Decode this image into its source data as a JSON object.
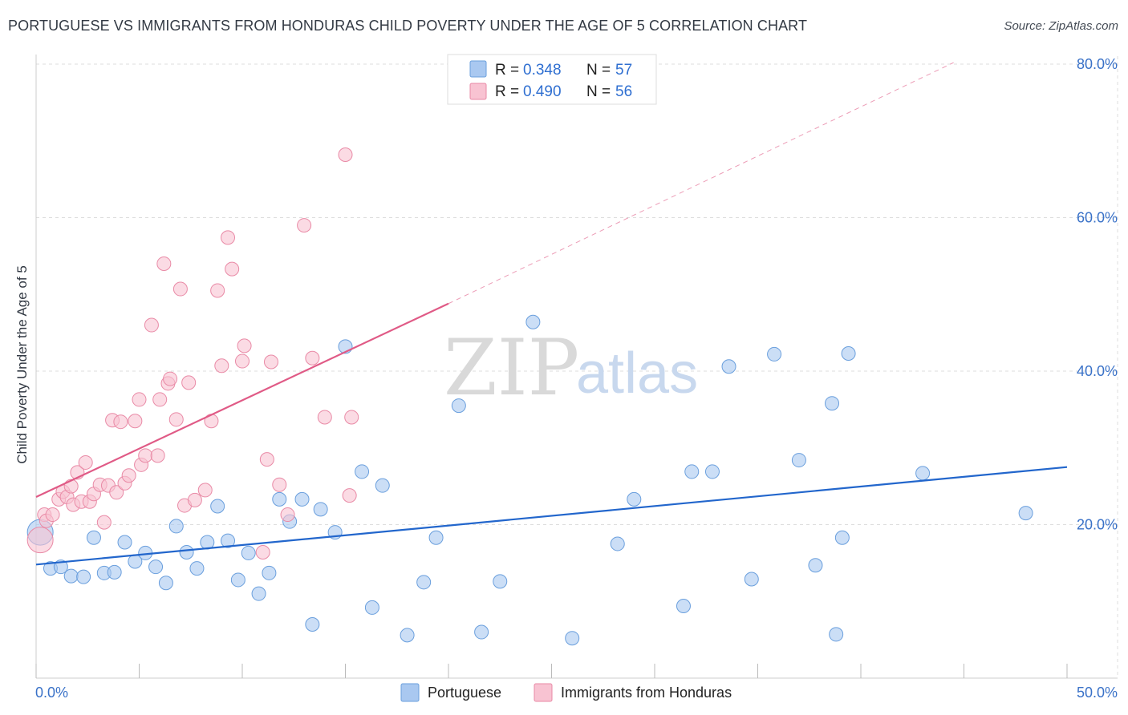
{
  "chart_data": {
    "type": "scatter",
    "title": "PORTUGUESE VS IMMIGRANTS FROM HONDURAS CHILD POVERTY UNDER THE AGE OF 5 CORRELATION CHART",
    "source": "Source: ZipAtlas.com",
    "ylabel": "Child Poverty Under the Age of 5",
    "xlabel": "",
    "xlim": [
      0,
      50
    ],
    "ylim": [
      0,
      80
    ],
    "x_tick_labels": [
      "0.0%",
      "50.0%"
    ],
    "y_ticks": [
      20,
      40,
      60,
      80
    ],
    "y_tick_labels": [
      "20.0%",
      "40.0%",
      "60.0%",
      "80.0%"
    ],
    "grid": true,
    "watermark": {
      "zip": "ZIP",
      "atlas": "atlas"
    },
    "colors": {
      "portuguese_fill": "#a9c8f0",
      "portuguese_stroke": "#6a9fdd",
      "portuguese_line": "#2266cc",
      "honduras_fill": "#f8c3d2",
      "honduras_stroke": "#e98aa6",
      "honduras_line": "#e05a86",
      "axis_label": "#3a72c8",
      "grid": "#dddddd"
    },
    "legend": {
      "r_label": "R =",
      "n_label": "N =",
      "entries": [
        {
          "name": "Portuguese",
          "r": "0.348",
          "n": "57"
        },
        {
          "name": "Immigrants from Honduras",
          "r": "0.490",
          "n": "56"
        }
      ]
    },
    "series": [
      {
        "name": "Portuguese",
        "trend": {
          "x0": 0,
          "y0": 14.8,
          "x1": 50,
          "y1": 27.5
        },
        "points": [
          [
            0.2,
            19.0
          ],
          [
            0.7,
            14.3
          ],
          [
            1.2,
            14.5
          ],
          [
            1.7,
            13.3
          ],
          [
            2.3,
            13.2
          ],
          [
            2.8,
            18.3
          ],
          [
            3.3,
            13.7
          ],
          [
            3.8,
            13.8
          ],
          [
            4.3,
            17.7
          ],
          [
            4.8,
            15.2
          ],
          [
            5.3,
            16.3
          ],
          [
            5.8,
            14.5
          ],
          [
            6.3,
            12.4
          ],
          [
            6.8,
            19.8
          ],
          [
            7.3,
            16.4
          ],
          [
            7.8,
            14.3
          ],
          [
            8.3,
            17.7
          ],
          [
            8.8,
            22.4
          ],
          [
            9.3,
            17.9
          ],
          [
            9.8,
            12.8
          ],
          [
            10.3,
            16.3
          ],
          [
            10.8,
            11.0
          ],
          [
            11.3,
            13.7
          ],
          [
            11.8,
            23.3
          ],
          [
            12.3,
            20.4
          ],
          [
            12.9,
            23.3
          ],
          [
            13.4,
            7.0
          ],
          [
            13.8,
            22.0
          ],
          [
            14.5,
            19.0
          ],
          [
            15.0,
            43.2
          ],
          [
            15.8,
            26.9
          ],
          [
            16.3,
            9.2
          ],
          [
            16.8,
            25.1
          ],
          [
            18.0,
            5.6
          ],
          [
            18.8,
            12.5
          ],
          [
            19.4,
            18.3
          ],
          [
            20.5,
            35.5
          ],
          [
            21.6,
            6.0
          ],
          [
            22.5,
            12.6
          ],
          [
            24.1,
            46.4
          ],
          [
            26.0,
            5.2
          ],
          [
            28.2,
            17.5
          ],
          [
            29.0,
            23.3
          ],
          [
            31.4,
            9.4
          ],
          [
            31.8,
            26.9
          ],
          [
            32.8,
            26.9
          ],
          [
            33.6,
            40.6
          ],
          [
            34.7,
            12.9
          ],
          [
            35.8,
            42.2
          ],
          [
            37.0,
            28.4
          ],
          [
            37.8,
            14.7
          ],
          [
            38.6,
            35.8
          ],
          [
            38.8,
            5.7
          ],
          [
            39.1,
            18.3
          ],
          [
            39.4,
            42.3
          ],
          [
            43.0,
            26.7
          ],
          [
            48.0,
            21.5
          ]
        ]
      },
      {
        "name": "Immigrants from Honduras",
        "trend": {
          "x0": 0,
          "y0": 23.6,
          "x1": 20.0,
          "y1": 48.8
        },
        "trend_extension": {
          "x0": 20.0,
          "y0": 48.8,
          "x1": 44.5,
          "y1": 80.2
        },
        "points": [
          [
            0.2,
            18.0
          ],
          [
            0.4,
            21.3
          ],
          [
            0.5,
            20.5
          ],
          [
            0.8,
            21.3
          ],
          [
            1.1,
            23.3
          ],
          [
            1.3,
            24.3
          ],
          [
            1.5,
            23.6
          ],
          [
            1.7,
            25.0
          ],
          [
            1.8,
            22.6
          ],
          [
            2.0,
            26.8
          ],
          [
            2.2,
            23.0
          ],
          [
            2.4,
            28.1
          ],
          [
            2.6,
            23.0
          ],
          [
            2.8,
            24.0
          ],
          [
            3.1,
            25.2
          ],
          [
            3.3,
            20.3
          ],
          [
            3.5,
            25.1
          ],
          [
            3.7,
            33.6
          ],
          [
            3.9,
            24.2
          ],
          [
            4.1,
            33.4
          ],
          [
            4.3,
            25.4
          ],
          [
            4.5,
            26.4
          ],
          [
            4.8,
            33.5
          ],
          [
            5.0,
            36.3
          ],
          [
            5.1,
            27.8
          ],
          [
            5.3,
            29.0
          ],
          [
            5.6,
            46.0
          ],
          [
            5.9,
            29.0
          ],
          [
            6.0,
            36.3
          ],
          [
            6.2,
            54.0
          ],
          [
            6.4,
            38.4
          ],
          [
            6.5,
            39.0
          ],
          [
            6.8,
            33.7
          ],
          [
            7.0,
            50.7
          ],
          [
            7.2,
            22.5
          ],
          [
            7.4,
            38.5
          ],
          [
            7.7,
            23.2
          ],
          [
            8.2,
            24.5
          ],
          [
            8.5,
            33.5
          ],
          [
            8.8,
            50.5
          ],
          [
            9.0,
            40.7
          ],
          [
            9.3,
            57.4
          ],
          [
            9.5,
            53.3
          ],
          [
            10.0,
            41.3
          ],
          [
            10.1,
            43.3
          ],
          [
            11.0,
            16.4
          ],
          [
            11.2,
            28.5
          ],
          [
            11.4,
            41.2
          ],
          [
            11.8,
            25.2
          ],
          [
            12.2,
            21.3
          ],
          [
            13.0,
            59.0
          ],
          [
            13.4,
            41.7
          ],
          [
            14.0,
            34.0
          ],
          [
            15.0,
            68.2
          ],
          [
            15.2,
            23.8
          ],
          [
            15.3,
            34.0
          ]
        ]
      }
    ]
  }
}
